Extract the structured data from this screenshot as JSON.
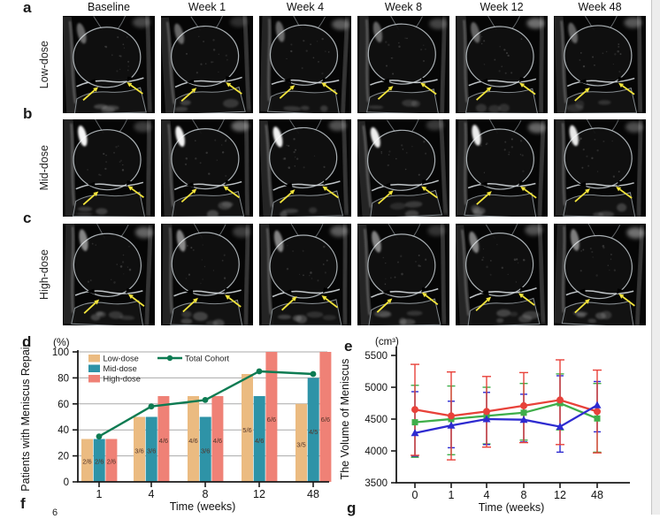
{
  "page": {
    "background": "#ffffff",
    "right_strip_color": "#ededed"
  },
  "panel_letters": {
    "a": "a",
    "b": "b",
    "c": "c",
    "d": "d",
    "e": "e",
    "f": "f",
    "g": "g"
  },
  "mri": {
    "column_headers": [
      "Baseline",
      "Week 1",
      "Week 4",
      "Week 8",
      "Week 12",
      "Week 48"
    ],
    "rows": [
      {
        "panel": "a",
        "label": "Low-dose"
      },
      {
        "panel": "b",
        "label": "Mid-dose"
      },
      {
        "panel": "c",
        "label": "High-dose"
      }
    ],
    "arrow_color": "#f2e43c"
  },
  "panel_f": {
    "partial_text": "6"
  },
  "chart_data": [
    {
      "id": "d",
      "type": "bar",
      "unit_label": "(%)",
      "ylabel": "Patients with Meniscus Repair",
      "xlabel": "Time (weeks)",
      "categories": [
        "1",
        "4",
        "8",
        "12",
        "48"
      ],
      "ylim": [
        0,
        100
      ],
      "yticks": [
        0,
        20,
        40,
        60,
        80,
        100
      ],
      "grid": true,
      "legend_position": "top-left",
      "bar_label_color": "#53352a",
      "series": [
        {
          "name": "Low-dose",
          "color": "#ebbb81",
          "values": [
            33,
            50,
            66,
            83,
            60
          ],
          "bar_labels": [
            "2/6",
            "3/6",
            "4/6",
            "5/6",
            "3/5"
          ]
        },
        {
          "name": "Mid-dose",
          "color": "#2e93a7",
          "values": [
            33,
            50,
            50,
            66,
            80
          ],
          "bar_labels": [
            "2/6",
            "3/6",
            "3/6",
            "4/6",
            "4/5"
          ]
        },
        {
          "name": "High-dose",
          "color": "#ef8176",
          "values": [
            33,
            66,
            66,
            100,
            100
          ],
          "bar_labels": [
            "2/6",
            "4/6",
            "4/6",
            "6/6",
            "6/6"
          ]
        }
      ],
      "line_series": {
        "name": "Total Cohort",
        "color": "#0d7b52",
        "values": [
          35,
          58,
          63,
          85,
          83
        ]
      }
    },
    {
      "id": "e",
      "type": "line",
      "unit_label": "(cm³)",
      "ylabel": "The Volume of Meniscus",
      "xlabel": "Time (weeks)",
      "categories": [
        "0",
        "1",
        "4",
        "8",
        "12",
        "48"
      ],
      "ylim": [
        3500,
        5500
      ],
      "yticks": [
        3500,
        4000,
        4500,
        5000,
        5500
      ],
      "grid": false,
      "legend_position": "none",
      "series": [
        {
          "name": "red-circles",
          "marker": "circle",
          "color": "#e8423a",
          "values": [
            4650,
            4550,
            4620,
            4710,
            4800,
            4620
          ],
          "err_hi": [
            5360,
            5240,
            5170,
            5230,
            5430,
            5270
          ],
          "err_lo": [
            3930,
            3860,
            4060,
            4130,
            4100,
            3970
          ]
        },
        {
          "name": "green-squares",
          "marker": "square",
          "color": "#3fae4a",
          "values": [
            4450,
            4500,
            4550,
            4600,
            4750,
            4510
          ],
          "err_hi": [
            5030,
            5020,
            5000,
            5060,
            5210,
            5060
          ],
          "err_lo": [
            3900,
            3940,
            4110,
            4170,
            4330,
            3980
          ]
        },
        {
          "name": "blue-triangles",
          "marker": "triangle",
          "color": "#2e2bd0",
          "values": [
            4280,
            4400,
            4500,
            4490,
            4380,
            4720
          ],
          "err_hi": [
            4930,
            4780,
            4920,
            4890,
            5180,
            5090
          ],
          "err_lo": [
            3920,
            4050,
            4100,
            4140,
            3980,
            4300
          ]
        }
      ]
    }
  ]
}
